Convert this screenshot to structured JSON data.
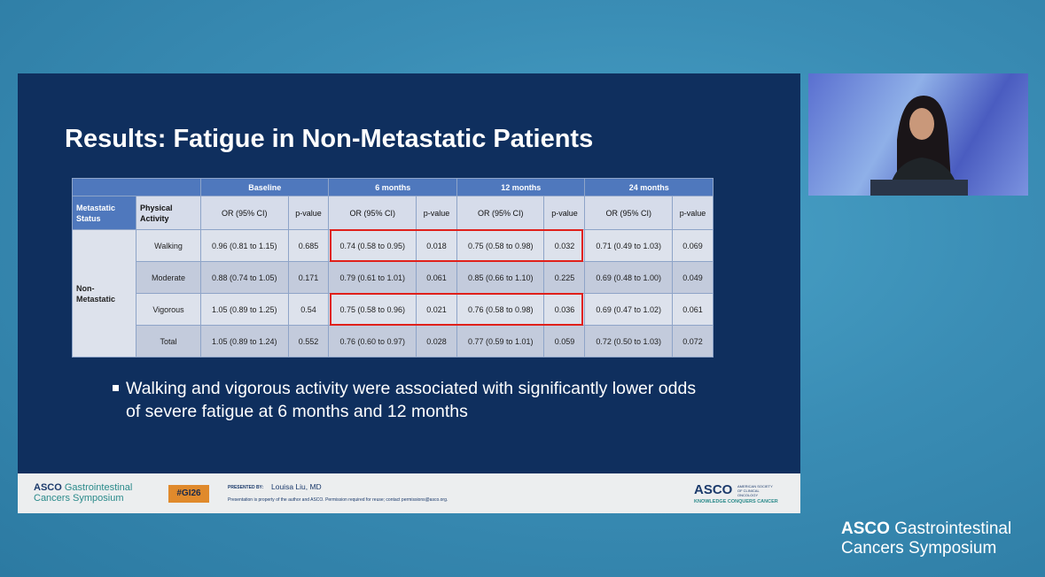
{
  "slide": {
    "title": "Results: Fatigue in Non-Metastatic Patients",
    "table": {
      "periods": [
        "Baseline",
        "6 months",
        "12 months",
        "24 months"
      ],
      "col_status": "Metastatic Status",
      "col_activity": "Physical Activity",
      "col_or": "OR (95% CI)",
      "col_p": "p-value",
      "status": "Non-Metastatic",
      "rows": [
        {
          "activity": "Walking",
          "cells": [
            "0.96 (0.81 to 1.15)",
            "0.685",
            "0.74 (0.58 to 0.95)",
            "0.018",
            "0.75 (0.58 to 0.98)",
            "0.032",
            "0.71 (0.49 to 1.03)",
            "0.069"
          ]
        },
        {
          "activity": "Moderate",
          "cells": [
            "0.88 (0.74 to 1.05)",
            "0.171",
            "0.79 (0.61 to 1.01)",
            "0.061",
            "0.85 (0.66 to 1.10)",
            "0.225",
            "0.69 (0.48 to 1.00)",
            "0.049"
          ]
        },
        {
          "activity": "Vigorous",
          "cells": [
            "1.05 (0.89 to 1.25)",
            "0.54",
            "0.75 (0.58 to 0.96)",
            "0.021",
            "0.76 (0.58 to 0.98)",
            "0.036",
            "0.69 (0.47 to 1.02)",
            "0.061"
          ]
        },
        {
          "activity": "Total",
          "cells": [
            "1.05 (0.89 to 1.24)",
            "0.552",
            "0.76 (0.60 to 0.97)",
            "0.028",
            "0.77 (0.59 to 1.01)",
            "0.059",
            "0.72 (0.50 to 1.03)",
            "0.072"
          ]
        }
      ]
    },
    "bullet": "Walking and vigorous activity were associated with significantly lower odds of severe fatigue at 6 months and 12 months",
    "footer": {
      "logo_asco": "ASCO",
      "logo_gi": "Gastrointestinal",
      "logo_sub": "Cancers Symposium",
      "hashtag": "#GI26",
      "presented_by": "PRESENTED BY:",
      "presenter": "Louisa Liu, MD",
      "notice": "Presentation is property of the author and ASCO. Permission required for reuse; contact permissions@asco.org.",
      "asco_right": "ASCO",
      "asco_society": "AMERICAN SOCIETY OF CLINICAL ONCOLOGY",
      "tagline": "KNOWLEDGE CONQUERS CANCER"
    }
  },
  "brand": {
    "asco": "ASCO",
    "gi": "Gastrointestinal",
    "sub": "Cancers Symposium"
  },
  "colors": {
    "slide_bg": "#0f2f5e",
    "header_blue": "#4f78bd",
    "highlight": "#e0201a",
    "hashtag_bg": "#e08a2c"
  }
}
